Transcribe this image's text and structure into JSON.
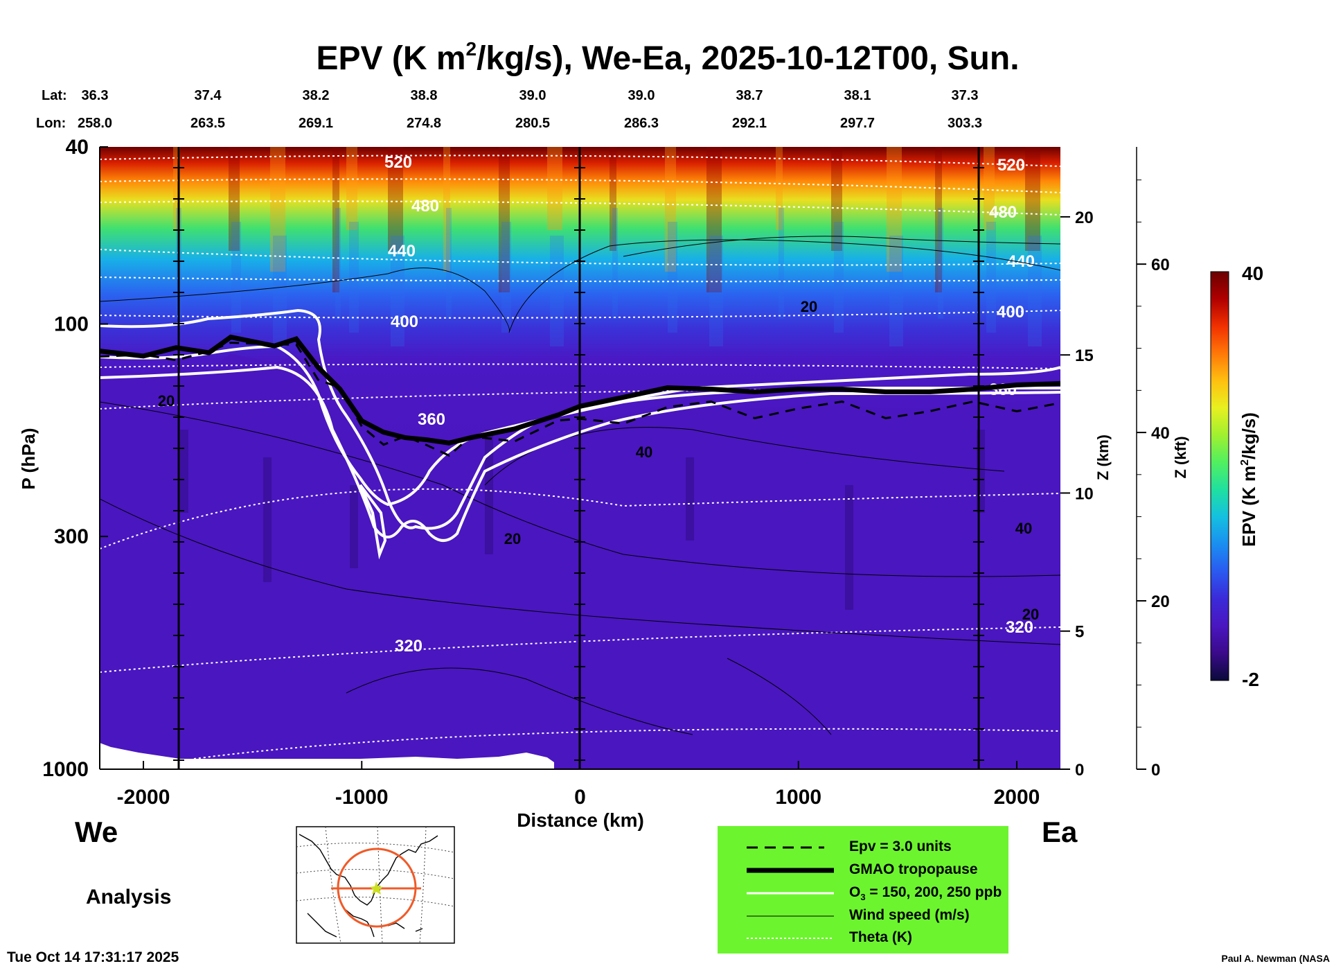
{
  "title": {
    "main": "EPV (K m",
    "sup": "2",
    "rest": "/kg/s), We-Ea, 2025-10-12T00, Sun."
  },
  "header": {
    "lat_label": "Lat:",
    "lon_label": "Lon:",
    "lats": [
      "36.3",
      "37.4",
      "38.2",
      "38.8",
      "39.0",
      "39.0",
      "38.7",
      "38.1",
      "37.3"
    ],
    "lons": [
      "258.0",
      "263.5",
      "269.1",
      "274.8",
      "280.5",
      "286.3",
      "292.1",
      "297.7",
      "303.3"
    ]
  },
  "footer": {
    "left_dir": "We",
    "right_dir": "Ea",
    "analysis": "Analysis",
    "timestamp": "Tue Oct 14 17:31:17 2025",
    "credit": "Paul A. Newman (NASA"
  },
  "colorbar": {
    "label_main": "EPV (K m",
    "label_sup": "2",
    "label_rest": "/kg/s)",
    "max_label": "40",
    "min_label": "-2",
    "stops": [
      "#0a0a3a",
      "#3a0a8a",
      "#4a16c0",
      "#3a2ad8",
      "#2a5af0",
      "#1a8ef0",
      "#14c0e0",
      "#20e0a0",
      "#50f060",
      "#a0f030",
      "#e8f020",
      "#ffc010",
      "#ff7808",
      "#f03000",
      "#b00000",
      "#6a0000"
    ]
  },
  "legend": {
    "background": "#6cf52e",
    "items": [
      {
        "label": "Epv = 3.0 units",
        "style": "dashed-black"
      },
      {
        "label": "GMAO tropopause",
        "style": "thick-black"
      },
      {
        "label_main": "O",
        "label_sub": "3",
        "label_rest": " = 150, 200, 250 ppb",
        "style": "white"
      },
      {
        "label": "Wind speed (m/s)",
        "style": "thin-black"
      },
      {
        "label": "Theta (K)",
        "style": "dotted-white"
      }
    ]
  },
  "chart_data": {
    "type": "heatmap",
    "title": "EPV (K m2/kg/s), We-Ea, 2025-10-12T00, Sun.",
    "xlabel": "Distance (km)",
    "ylabel": "P (hPa)",
    "z_km_label": "Z (km)",
    "z_kft_label": "Z (kft)",
    "xlim": [
      -2200,
      2200
    ],
    "x_ticks": [
      -2000,
      -1000,
      0,
      1000,
      2000
    ],
    "x_tick_labels": [
      "-2000",
      "-1000",
      "0",
      "1000",
      "2000"
    ],
    "y_scale": "log",
    "ylim": [
      1000,
      40
    ],
    "y_ticks": [
      40,
      100,
      300,
      1000
    ],
    "y_tick_labels": [
      "40",
      "100",
      "300",
      "1000"
    ],
    "z_km_ticks": [
      0,
      5,
      10,
      15,
      20
    ],
    "z_kft_ticks": [
      0,
      20,
      40,
      60
    ],
    "colorbar_range": [
      -2,
      40
    ],
    "theta_levels_K": [
      320,
      360,
      400,
      440,
      480,
      520
    ],
    "wind_labels_ms": [
      20,
      40
    ],
    "tropopause_pressure_hPa": [
      {
        "x": -2200,
        "p": 115
      },
      {
        "x": -2000,
        "p": 118
      },
      {
        "x": -1850,
        "p": 113
      },
      {
        "x": -1700,
        "p": 116
      },
      {
        "x": -1600,
        "p": 107
      },
      {
        "x": -1400,
        "p": 112
      },
      {
        "x": -1300,
        "p": 108
      },
      {
        "x": -1200,
        "p": 125
      },
      {
        "x": -1100,
        "p": 140
      },
      {
        "x": -1000,
        "p": 165
      },
      {
        "x": -900,
        "p": 175
      },
      {
        "x": -800,
        "p": 180
      },
      {
        "x": -700,
        "p": 182
      },
      {
        "x": -600,
        "p": 185
      },
      {
        "x": -500,
        "p": 180
      },
      {
        "x": -300,
        "p": 172
      },
      {
        "x": -100,
        "p": 160
      },
      {
        "x": 0,
        "p": 153
      },
      {
        "x": 200,
        "p": 146
      },
      {
        "x": 400,
        "p": 139
      },
      {
        "x": 600,
        "p": 140
      },
      {
        "x": 800,
        "p": 142
      },
      {
        "x": 1000,
        "p": 140
      },
      {
        "x": 1200,
        "p": 140
      },
      {
        "x": 1400,
        "p": 142
      },
      {
        "x": 1600,
        "p": 142
      },
      {
        "x": 1800,
        "p": 140
      },
      {
        "x": 2000,
        "p": 137
      },
      {
        "x": 2200,
        "p": 136
      }
    ]
  }
}
